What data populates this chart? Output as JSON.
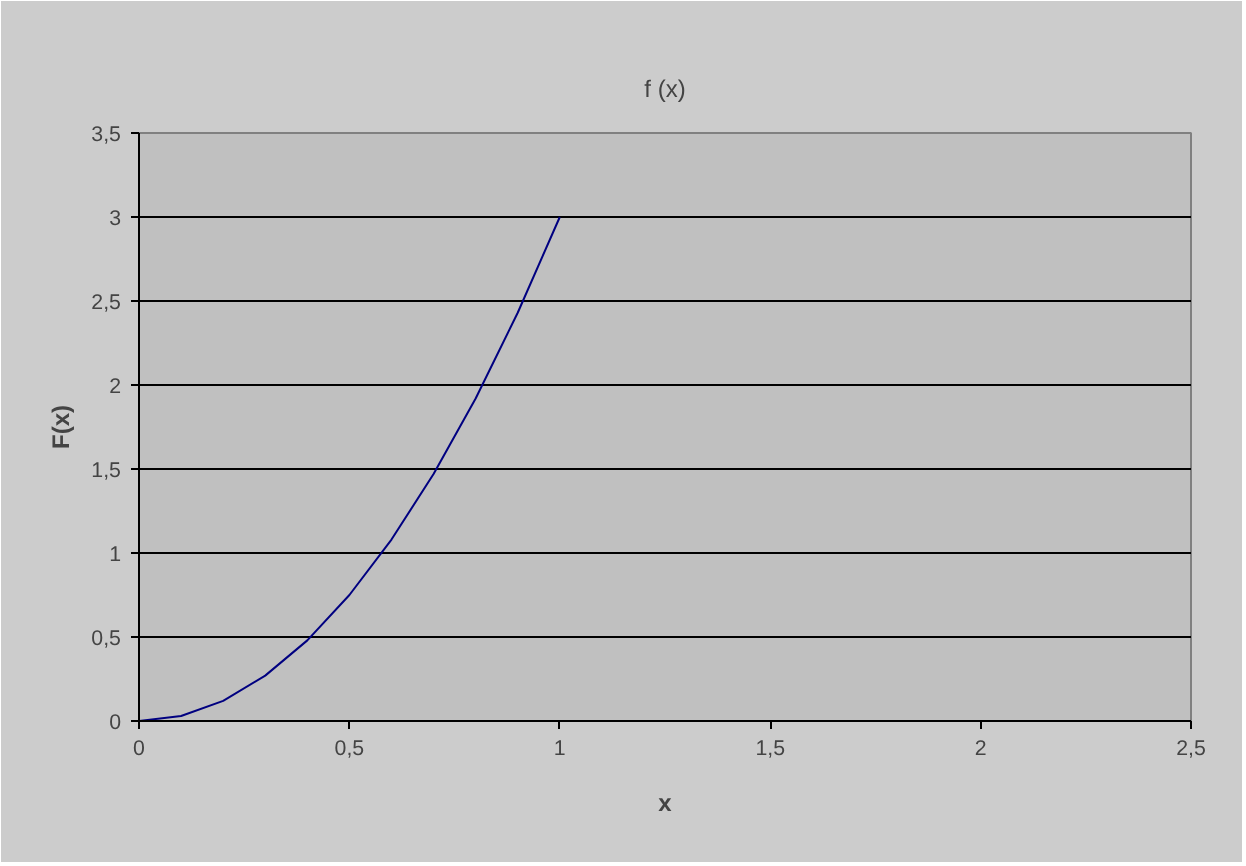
{
  "chart_data": {
    "type": "line",
    "title": "f (x)",
    "xlabel": "x",
    "ylabel": "F(x)",
    "x": [
      0,
      0.1,
      0.2,
      0.3,
      0.4,
      0.5,
      0.6,
      0.7,
      0.8,
      0.9,
      1
    ],
    "series": [
      {
        "color": "#000080",
        "values": [
          0,
          0.03,
          0.12,
          0.27,
          0.48,
          0.75,
          1.08,
          1.47,
          1.92,
          2.43,
          3
        ]
      }
    ],
    "xlim": [
      0,
      2.5
    ],
    "ylim": [
      0,
      3.5
    ],
    "xticks": [
      0,
      {
        "value": 0.5,
        "label": "0,5"
      },
      1,
      {
        "value": 1.5,
        "label": "1,5"
      },
      2,
      {
        "value": 2.5,
        "label": "2,5"
      }
    ],
    "yticks": [
      0,
      {
        "value": 0.5,
        "label": "0,5"
      },
      1,
      {
        "value": 1.5,
        "label": "1,5"
      },
      2,
      {
        "value": 2.5,
        "label": "2,5"
      },
      3,
      {
        "value": 3.5,
        "label": "3,5"
      }
    ],
    "grid": "y",
    "marker": "none",
    "line_style": "solid"
  }
}
